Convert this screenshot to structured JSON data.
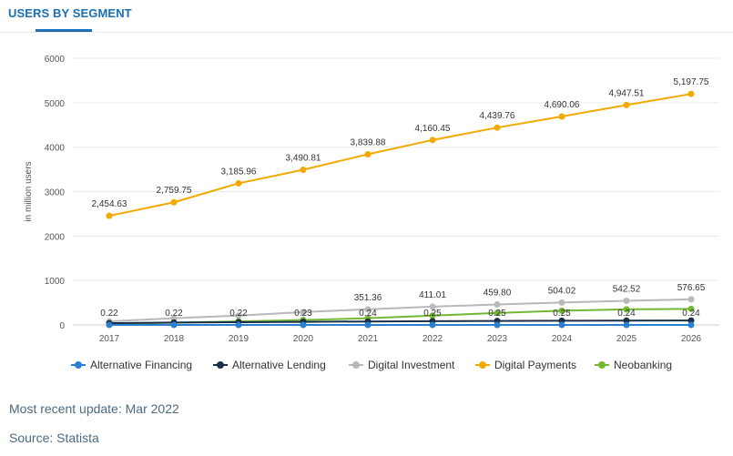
{
  "header": {
    "tab_label": "USERS BY SEGMENT"
  },
  "chart_data": {
    "type": "line",
    "ylabel": "in million users",
    "xlabel": "",
    "ylim": [
      0,
      6000
    ],
    "yticks": [
      0,
      1000,
      2000,
      3000,
      4000,
      5000,
      6000
    ],
    "grid": true,
    "legend_position": "bottom",
    "categories": [
      "2017",
      "2018",
      "2019",
      "2020",
      "2021",
      "2022",
      "2023",
      "2024",
      "2025",
      "2026"
    ],
    "series": [
      {
        "name": "Alternative Financing",
        "color": "#2b7fd1",
        "values": [
          0.22,
          0.22,
          0.22,
          0.23,
          0.24,
          0.25,
          0.25,
          0.25,
          0.24,
          0.24
        ]
      },
      {
        "name": "Alternative Lending",
        "color": "#1a2e45",
        "values": [
          40,
          55,
          62,
          70,
          78,
          85,
          90,
          95,
          98,
          100
        ]
      },
      {
        "name": "Digital Investment",
        "color": "#b9b9b9",
        "values": [
          80,
          150,
          210,
          290,
          351.36,
          411.01,
          459.8,
          504.02,
          542.52,
          576.65
        ]
      },
      {
        "name": "Digital Payments",
        "color": "#f2a900",
        "values": [
          2454.63,
          2759.75,
          3185.96,
          3490.81,
          3839.88,
          4160.45,
          4439.76,
          4690.06,
          4947.51,
          5197.75
        ]
      },
      {
        "name": "Neobanking",
        "color": "#72b832",
        "values": [
          20,
          50,
          80,
          110,
          150,
          210,
          270,
          320,
          350,
          360
        ]
      }
    ],
    "data_labels": {
      "top_series": [
        "2,454.63",
        "2,759.75",
        "3,185.96",
        "3,490.81",
        "3,839.88",
        "4,160.45",
        "4,439.76",
        "4,690.06",
        "4,947.51",
        "5,197.75"
      ],
      "mid_series": [
        "",
        "",
        "",
        "",
        "351.36",
        "411.01",
        "459.80",
        "504.02",
        "542.52",
        "576.65"
      ],
      "low_series": [
        "0.22",
        "0.22",
        "0.22",
        "0.23",
        "0.24",
        "0.25",
        "0.25",
        "0.25",
        "0.24",
        "0.24"
      ]
    }
  },
  "footer": {
    "update": "Most recent update: Mar 2022",
    "source": "Source: Statista"
  }
}
